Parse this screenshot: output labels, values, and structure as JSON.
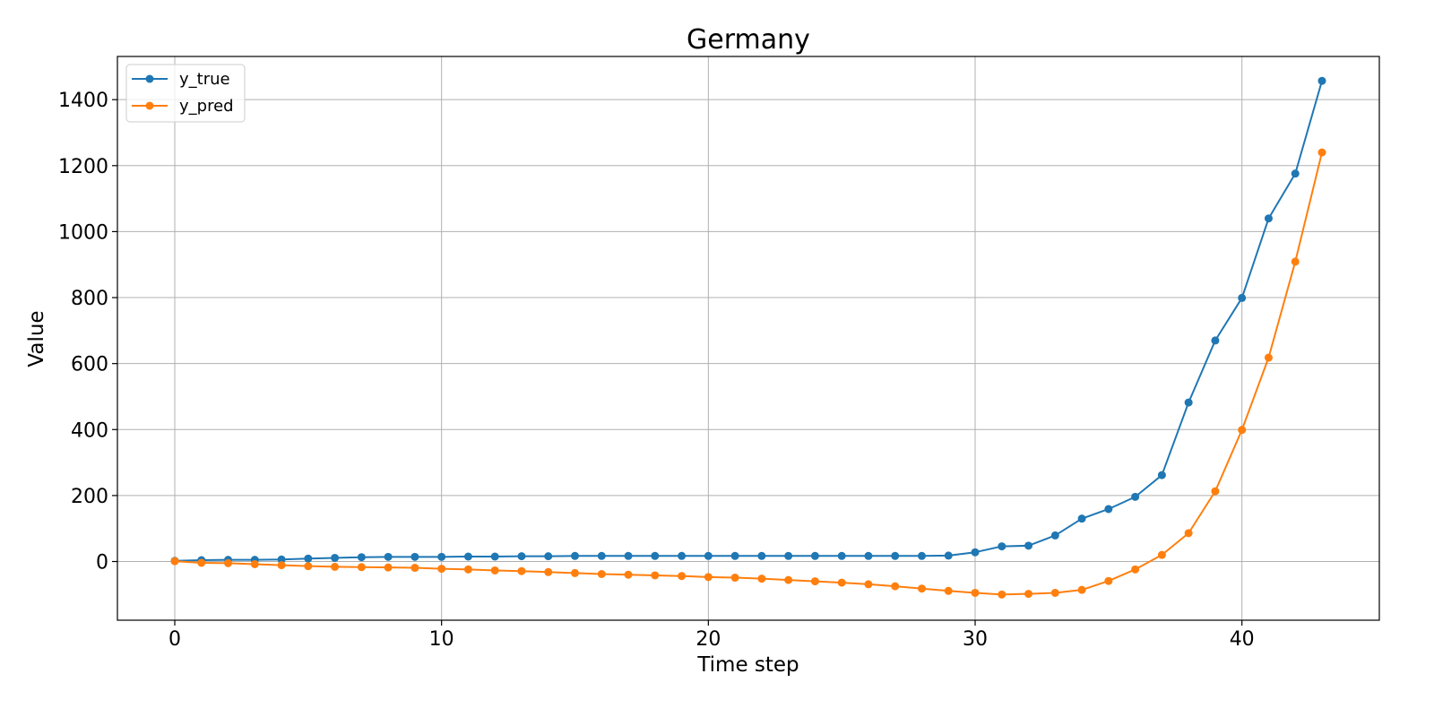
{
  "chart_data": {
    "type": "line",
    "title": "Germany",
    "xlabel": "Time step",
    "ylabel": "Value",
    "x": [
      0,
      1,
      2,
      3,
      4,
      5,
      6,
      7,
      8,
      9,
      10,
      11,
      12,
      13,
      14,
      15,
      16,
      17,
      18,
      19,
      20,
      21,
      22,
      23,
      24,
      25,
      26,
      27,
      28,
      29,
      30,
      31,
      32,
      33,
      34,
      35,
      36,
      37,
      38,
      39,
      40,
      41,
      42,
      43
    ],
    "series": [
      {
        "name": "y_true",
        "color": "#1f77b4",
        "values": [
          2,
          4,
          5,
          5,
          6,
          9,
          11,
          13,
          14,
          14,
          14,
          15,
          15,
          16,
          16,
          17,
          17,
          17,
          17,
          17,
          17,
          17,
          17,
          17,
          17,
          17,
          17,
          17,
          17,
          18,
          28,
          46,
          48,
          79,
          130,
          159,
          196,
          262,
          482,
          670,
          799,
          1040,
          1176,
          1457
        ]
      },
      {
        "name": "y_pred",
        "color": "#ff7f0e",
        "values": [
          1,
          -4,
          -5,
          -8,
          -11,
          -14,
          -16,
          -17,
          -18,
          -19,
          -22,
          -24,
          -27,
          -29,
          -32,
          -35,
          -38,
          -40,
          -42,
          -44,
          -47,
          -49,
          -52,
          -56,
          -60,
          -64,
          -69,
          -75,
          -82,
          -89,
          -95,
          -100,
          -98,
          -95,
          -86,
          -59,
          -24,
          20,
          86,
          213,
          399,
          618,
          909,
          1240
        ]
      }
    ],
    "xlim": [
      -2.15,
      45.15
    ],
    "ylim": [
      -177.9,
      1530.9
    ],
    "xticks": [
      0,
      10,
      20,
      30,
      40
    ],
    "yticks": [
      0,
      200,
      400,
      600,
      800,
      1000,
      1200,
      1400
    ],
    "grid": true,
    "legend_position": "top-left"
  }
}
